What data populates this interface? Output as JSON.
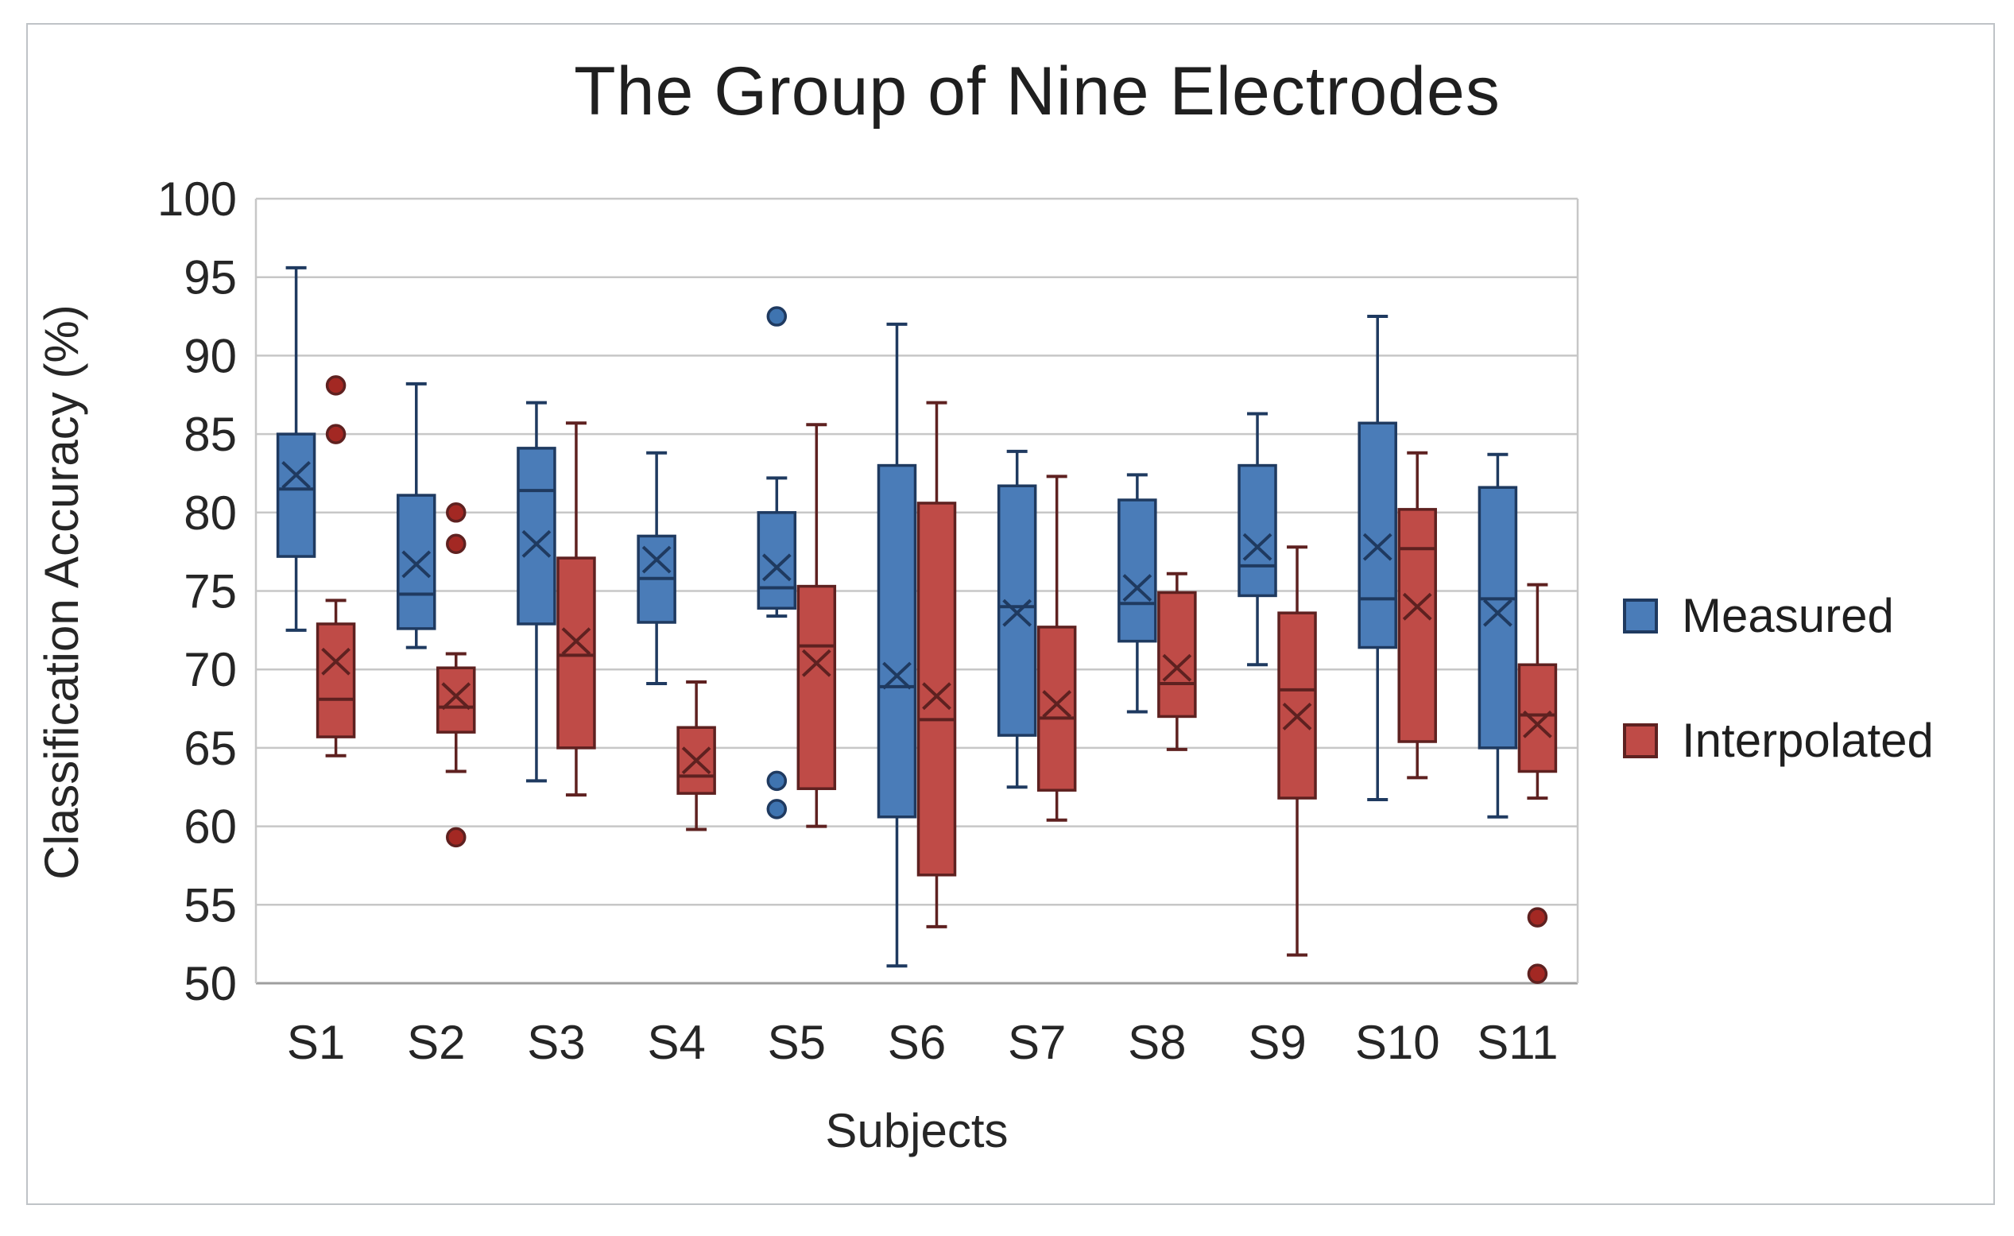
{
  "chart_data": {
    "type": "boxplot",
    "title": "The Group of Nine Electrodes",
    "xlabel": "Subjects",
    "ylabel": "Classification Accuracy (%)",
    "ylim": [
      50,
      100
    ],
    "y_ticks": [
      100,
      95,
      90,
      85,
      80,
      75,
      70,
      65,
      60,
      55,
      50
    ],
    "grid": true,
    "legend_position": "right-center",
    "grid_color": "#c7c7c7",
    "axis_color": "#9e9e9e",
    "text_color": "#262626",
    "categories": [
      "S1",
      "S2",
      "S3",
      "S4",
      "S5",
      "S6",
      "S7",
      "S8",
      "S9",
      "S10",
      "S11"
    ],
    "series": [
      {
        "name": "Measured",
        "color": "#4a7cb8",
        "border": "#1f3a60",
        "outlier_fill": "#3f74b0",
        "boxes": [
          {
            "whisker_low": 72.5,
            "q1": 77.2,
            "median": 81.5,
            "mean": 82.4,
            "q3": 85.0,
            "whisker_high": 95.6,
            "outliers": []
          },
          {
            "whisker_low": 71.4,
            "q1": 72.6,
            "median": 74.8,
            "mean": 76.7,
            "q3": 81.1,
            "whisker_high": 88.2,
            "outliers": []
          },
          {
            "whisker_low": 62.9,
            "q1": 72.9,
            "median": 81.4,
            "mean": 78.0,
            "q3": 84.1,
            "whisker_high": 87.0,
            "outliers": []
          },
          {
            "whisker_low": 69.1,
            "q1": 73.0,
            "median": 75.8,
            "mean": 77.0,
            "q3": 78.5,
            "whisker_high": 83.8,
            "outliers": []
          },
          {
            "whisker_low": 73.4,
            "q1": 73.9,
            "median": 75.2,
            "mean": 76.5,
            "q3": 80.0,
            "whisker_high": 82.2,
            "outliers": [
              92.5,
              62.9,
              61.1
            ]
          },
          {
            "whisker_low": 51.1,
            "q1": 60.6,
            "median": 68.9,
            "mean": 69.6,
            "q3": 83.0,
            "whisker_high": 92.0,
            "outliers": []
          },
          {
            "whisker_low": 62.5,
            "q1": 65.8,
            "median": 74.0,
            "mean": 73.6,
            "q3": 81.7,
            "whisker_high": 83.9,
            "outliers": []
          },
          {
            "whisker_low": 67.3,
            "q1": 71.8,
            "median": 74.2,
            "mean": 75.2,
            "q3": 80.8,
            "whisker_high": 82.4,
            "outliers": []
          },
          {
            "whisker_low": 70.3,
            "q1": 74.7,
            "median": 76.6,
            "mean": 77.8,
            "q3": 83.0,
            "whisker_high": 86.3,
            "outliers": []
          },
          {
            "whisker_low": 61.7,
            "q1": 71.4,
            "median": 74.5,
            "mean": 77.8,
            "q3": 85.7,
            "whisker_high": 92.5,
            "outliers": []
          },
          {
            "whisker_low": 60.6,
            "q1": 65.0,
            "median": 74.5,
            "mean": 73.6,
            "q3": 81.6,
            "whisker_high": 83.7,
            "outliers": []
          }
        ]
      },
      {
        "name": "Interpolated",
        "color": "#bf4b47",
        "border": "#5e2120",
        "outlier_fill": "#a32823",
        "boxes": [
          {
            "whisker_low": 64.5,
            "q1": 65.7,
            "median": 68.1,
            "mean": 70.5,
            "q3": 72.9,
            "whisker_high": 74.4,
            "outliers": [
              88.1,
              85.0
            ]
          },
          {
            "whisker_low": 63.5,
            "q1": 66.0,
            "median": 67.6,
            "mean": 68.3,
            "q3": 70.1,
            "whisker_high": 71.0,
            "outliers": [
              80.0,
              78.0,
              59.3
            ]
          },
          {
            "whisker_low": 62.0,
            "q1": 65.0,
            "median": 70.9,
            "mean": 71.8,
            "q3": 77.1,
            "whisker_high": 85.7,
            "outliers": []
          },
          {
            "whisker_low": 59.8,
            "q1": 62.1,
            "median": 63.2,
            "mean": 64.2,
            "q3": 66.3,
            "whisker_high": 69.2,
            "outliers": []
          },
          {
            "whisker_low": 60.0,
            "q1": 62.4,
            "median": 71.5,
            "mean": 70.4,
            "q3": 75.3,
            "whisker_high": 85.6,
            "outliers": []
          },
          {
            "whisker_low": 53.6,
            "q1": 56.9,
            "median": 66.8,
            "mean": 68.3,
            "q3": 80.6,
            "whisker_high": 87.0,
            "outliers": []
          },
          {
            "whisker_low": 60.4,
            "q1": 62.3,
            "median": 66.9,
            "mean": 67.8,
            "q3": 72.7,
            "whisker_high": 82.3,
            "outliers": []
          },
          {
            "whisker_low": 64.9,
            "q1": 67.0,
            "median": 69.1,
            "mean": 70.1,
            "q3": 74.9,
            "whisker_high": 76.1,
            "outliers": []
          },
          {
            "whisker_low": 51.8,
            "q1": 61.8,
            "median": 68.7,
            "mean": 67.0,
            "q3": 73.6,
            "whisker_high": 77.8,
            "outliers": []
          },
          {
            "whisker_low": 63.1,
            "q1": 65.4,
            "median": 77.7,
            "mean": 74.0,
            "q3": 80.2,
            "whisker_high": 83.8,
            "outliers": []
          },
          {
            "whisker_low": 61.8,
            "q1": 63.5,
            "median": 67.1,
            "mean": 66.5,
            "q3": 70.3,
            "whisker_high": 75.4,
            "outliers": [
              54.2,
              50.6
            ]
          }
        ]
      }
    ]
  }
}
